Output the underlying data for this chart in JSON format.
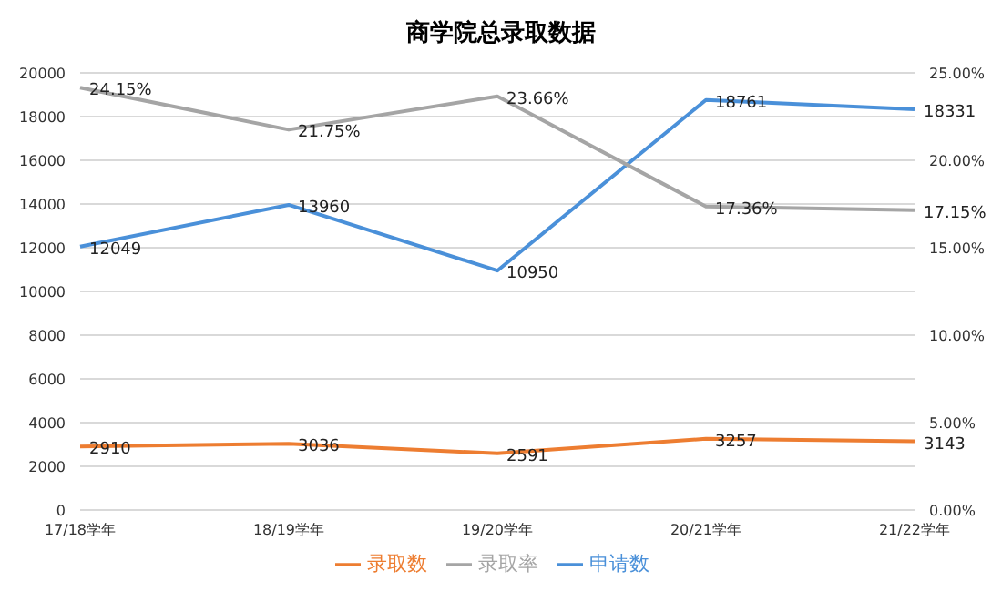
{
  "chart_data": {
    "type": "line",
    "title": "商学院总录取数据",
    "categories": [
      "17/18学年",
      "18/19学年",
      "19/20学年",
      "20/21学年",
      "21/22学年"
    ],
    "series": [
      {
        "name": "申请数",
        "color": "#4a90d9",
        "values": [
          12049,
          13960,
          10950,
          18761,
          18331
        ],
        "value_labels": [
          "12049",
          "13960",
          "10950",
          "18761",
          "18331"
        ]
      },
      {
        "name": "录取数",
        "color": "#ed7d31",
        "values": [
          2910,
          3036,
          2591,
          3257,
          3143
        ],
        "value_labels": [
          "2910",
          "3036",
          "2591",
          "3257",
          "3143"
        ]
      },
      {
        "name": "录取率",
        "color": "#a5a5a5",
        "axis": "y2",
        "values": [
          24.15,
          21.75,
          23.66,
          17.36,
          17.15
        ],
        "value_labels": [
          "24.15%",
          "21.75%",
          "23.66%",
          "17.36%",
          "17.15%"
        ]
      }
    ],
    "ylim": [
      0,
      20000
    ],
    "yticks": [
      0,
      2000,
      4000,
      6000,
      8000,
      10000,
      12000,
      14000,
      16000,
      18000,
      20000
    ],
    "y2lim": [
      0,
      25
    ],
    "y2ticks": [
      {
        "value": 0,
        "label": "0.00%"
      },
      {
        "value": 5,
        "label": "5.00%"
      },
      {
        "value": 10,
        "label": "10.00%"
      },
      {
        "value": 15,
        "label": "15.00%"
      },
      {
        "value": 20,
        "label": "20.00%"
      },
      {
        "value": 25,
        "label": "25.00%"
      }
    ],
    "grid": "y",
    "legend": "bottom",
    "marker": "none",
    "line_style": "solid"
  }
}
